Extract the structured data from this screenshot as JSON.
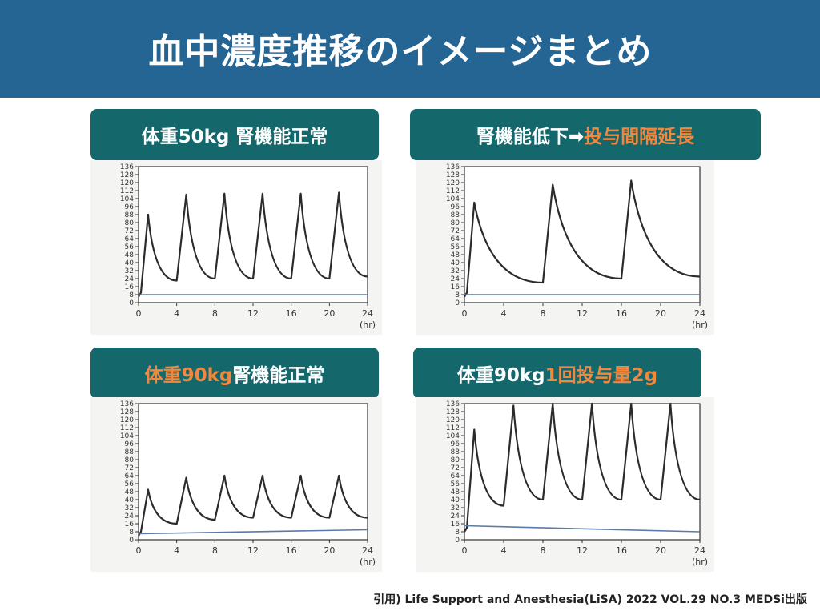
{
  "slide": {
    "title": "血中濃度推移のイメージまとめ",
    "citation": "引用) Life Support and Anesthesia(LiSA) 2022 VOL.29 NO.3 MEDSi出版"
  },
  "colors": {
    "header": "#246593",
    "label_bg": "#14676b",
    "highlight": "#f2883e",
    "curve": "#2b2b2b",
    "baseline": "#5a7aa8"
  },
  "panels": [
    {
      "label_pre": "体重50kg 腎機能正常",
      "label_hl": "",
      "label_post": ""
    },
    {
      "label_pre": "腎機能低下➡",
      "label_hl": "投与間隔延長",
      "label_post": ""
    },
    {
      "label_pre": "",
      "label_hl": "体重90kg",
      "label_post": " 腎機能正常"
    },
    {
      "label_pre": "体重90kg ",
      "label_hl": "1回投与量2g",
      "label_post": ""
    }
  ],
  "chart_data": [
    {
      "type": "line",
      "xlim": [
        0,
        24
      ],
      "ylim": [
        0,
        136
      ],
      "xticks": [
        "0",
        "4",
        "8",
        "12",
        "16",
        "20",
        "24"
      ],
      "yticks": [
        "0",
        "8",
        "16",
        "24",
        "32",
        "40",
        "48",
        "56",
        "64",
        "72",
        "80",
        "88",
        "96",
        "104",
        "112",
        "120",
        "128",
        "136"
      ],
      "xunit": "(hr)",
      "series": [
        {
          "x": [
            0,
            0.25,
            1,
            4,
            5,
            8,
            9,
            12,
            13,
            16,
            17,
            20,
            21,
            24
          ],
          "y": [
            6,
            10,
            88,
            22,
            108,
            24,
            109,
            24,
            109,
            24,
            109,
            24,
            110,
            26
          ]
        },
        {
          "x": [
            0,
            24
          ],
          "y": [
            8,
            8
          ]
        }
      ]
    },
    {
      "type": "line",
      "xlim": [
        0,
        24
      ],
      "ylim": [
        0,
        136
      ],
      "xticks": [
        "0",
        "4",
        "8",
        "12",
        "16",
        "20",
        "24"
      ],
      "yticks": [
        "0",
        "8",
        "16",
        "24",
        "32",
        "40",
        "48",
        "56",
        "64",
        "72",
        "80",
        "88",
        "96",
        "104",
        "112",
        "120",
        "128",
        "136"
      ],
      "xunit": "(hr)",
      "series": [
        {
          "x": [
            0,
            0.25,
            1,
            8,
            9,
            16,
            17,
            24
          ],
          "y": [
            6,
            10,
            100,
            20,
            118,
            24,
            122,
            26
          ]
        },
        {
          "x": [
            0,
            24
          ],
          "y": [
            8,
            8
          ]
        }
      ]
    },
    {
      "type": "line",
      "xlim": [
        0,
        24
      ],
      "ylim": [
        0,
        136
      ],
      "xticks": [
        "0",
        "4",
        "8",
        "12",
        "16",
        "20",
        "24"
      ],
      "yticks": [
        "0",
        "8",
        "16",
        "24",
        "32",
        "40",
        "48",
        "56",
        "64",
        "72",
        "80",
        "88",
        "96",
        "104",
        "112",
        "120",
        "128",
        "136"
      ],
      "xunit": "(hr)",
      "series": [
        {
          "x": [
            0,
            0.25,
            1,
            4,
            5,
            8,
            9,
            12,
            13,
            16,
            17,
            20,
            21,
            24
          ],
          "y": [
            4,
            8,
            50,
            16,
            62,
            20,
            64,
            22,
            64,
            22,
            64,
            22,
            64,
            22
          ]
        },
        {
          "x": [
            0,
            24
          ],
          "y": [
            6,
            10
          ]
        }
      ]
    },
    {
      "type": "line",
      "xlim": [
        0,
        24
      ],
      "ylim": [
        0,
        136
      ],
      "xticks": [
        "0",
        "4",
        "8",
        "12",
        "16",
        "20",
        "24"
      ],
      "yticks": [
        "0",
        "8",
        "16",
        "24",
        "32",
        "40",
        "48",
        "56",
        "64",
        "72",
        "80",
        "88",
        "96",
        "104",
        "112",
        "120",
        "128",
        "136"
      ],
      "xunit": "(hr)",
      "series": [
        {
          "x": [
            0,
            0.25,
            1,
            4,
            5,
            8,
            9,
            12,
            13,
            16,
            17,
            20,
            21,
            24
          ],
          "y": [
            8,
            12,
            110,
            34,
            134,
            40,
            136,
            40,
            136,
            40,
            136,
            40,
            136,
            40
          ]
        },
        {
          "x": [
            0,
            24
          ],
          "y": [
            14,
            8
          ]
        }
      ]
    }
  ]
}
